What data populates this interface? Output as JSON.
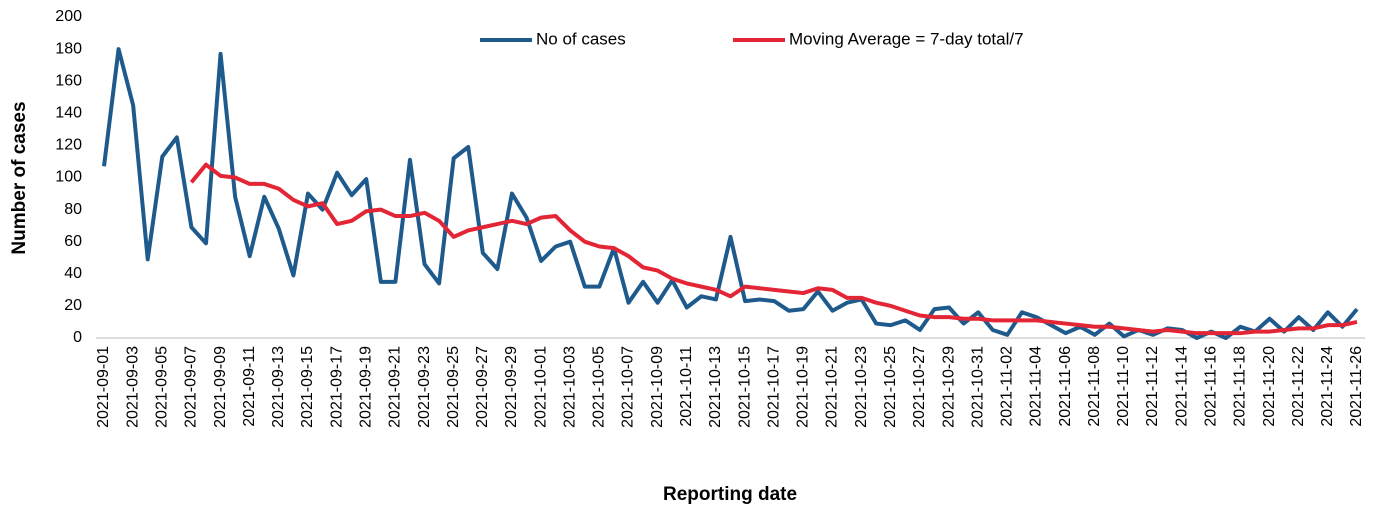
{
  "chart_data": {
    "type": "line",
    "x_label": "Reporting date",
    "y_label": "Number of cases",
    "categories": [
      "2021-09-01",
      null,
      "2021-09-03",
      null,
      "2021-09-05",
      null,
      "2021-09-07",
      null,
      "2021-09-09",
      null,
      "2021-09-11",
      null,
      "2021-09-13",
      null,
      "2021-09-15",
      null,
      "2021-09-17",
      null,
      "2021-09-19",
      null,
      "2021-09-21",
      null,
      "2021-09-23",
      null,
      "2021-09-25",
      null,
      "2021-09-27",
      null,
      "2021-09-29",
      null,
      "2021-10-01",
      null,
      "2021-10-03",
      null,
      "2021-10-05",
      null,
      "2021-10-07",
      null,
      "2021-10-09",
      null,
      "2021-10-11",
      null,
      "2021-10-13",
      null,
      "2021-10-15",
      null,
      "2021-10-17",
      null,
      "2021-10-19",
      null,
      "2021-10-21",
      null,
      "2021-10-23",
      null,
      "2021-10-25",
      null,
      "2021-10-27",
      null,
      "2021-10-29",
      null,
      "2021-10-31",
      null,
      "2021-11-02",
      null,
      "2021-11-04",
      null,
      "2021-11-06",
      null,
      "2021-11-08",
      null,
      "2021-11-10",
      null,
      "2021-11-12",
      null,
      "2021-11-14",
      null,
      "2021-11-16",
      null,
      "2021-11-18",
      null,
      "2021-11-20",
      null,
      "2021-11-22",
      null,
      "2021-11-24",
      null,
      "2021-11-26"
    ],
    "series": [
      {
        "name": "No of cases",
        "color": "#1f5a8c",
        "values": [
          107,
          180,
          145,
          49,
          113,
          125,
          69,
          59,
          177,
          88,
          51,
          88,
          68,
          39,
          90,
          80,
          103,
          89,
          99,
          35,
          35,
          111,
          46,
          34,
          112,
          119,
          53,
          43,
          90,
          75,
          48,
          57,
          60,
          32,
          32,
          56,
          22,
          35,
          22,
          36,
          19,
          26,
          24,
          63,
          23,
          24,
          23,
          17,
          18,
          29,
          17,
          22,
          24,
          9,
          8,
          11,
          5,
          18,
          19,
          9,
          16,
          5,
          2,
          16,
          13,
          8,
          3,
          7,
          2,
          9,
          1,
          5,
          2,
          6,
          5,
          0,
          4,
          0,
          7,
          4,
          12,
          4,
          13,
          5,
          16,
          7,
          18
        ]
      },
      {
        "name": "Moving Average = 7-day total/7",
        "color": "#e32636",
        "values": [
          null,
          null,
          null,
          null,
          null,
          null,
          97,
          108,
          101,
          100,
          96,
          96,
          93,
          86,
          82,
          84,
          71,
          73,
          79,
          80,
          76,
          76,
          78,
          73,
          63,
          67,
          69,
          71,
          73,
          71,
          75,
          76,
          67,
          60,
          57,
          56,
          51,
          44,
          42,
          37,
          34,
          32,
          30,
          26,
          32,
          31,
          30,
          29,
          28,
          31,
          30,
          25,
          25,
          22,
          20,
          17,
          14,
          13,
          13,
          12,
          12,
          11,
          11,
          11,
          11,
          10,
          9,
          8,
          7,
          7,
          6,
          5,
          4,
          5,
          4,
          3,
          3,
          3,
          3,
          4,
          4,
          5,
          6,
          6,
          8,
          8,
          10
        ]
      }
    ],
    "ylim": [
      0,
      200
    ],
    "yticks": [
      0,
      20,
      40,
      60,
      80,
      100,
      120,
      140,
      160,
      180,
      200
    ],
    "grid": false,
    "legend": "top"
  }
}
